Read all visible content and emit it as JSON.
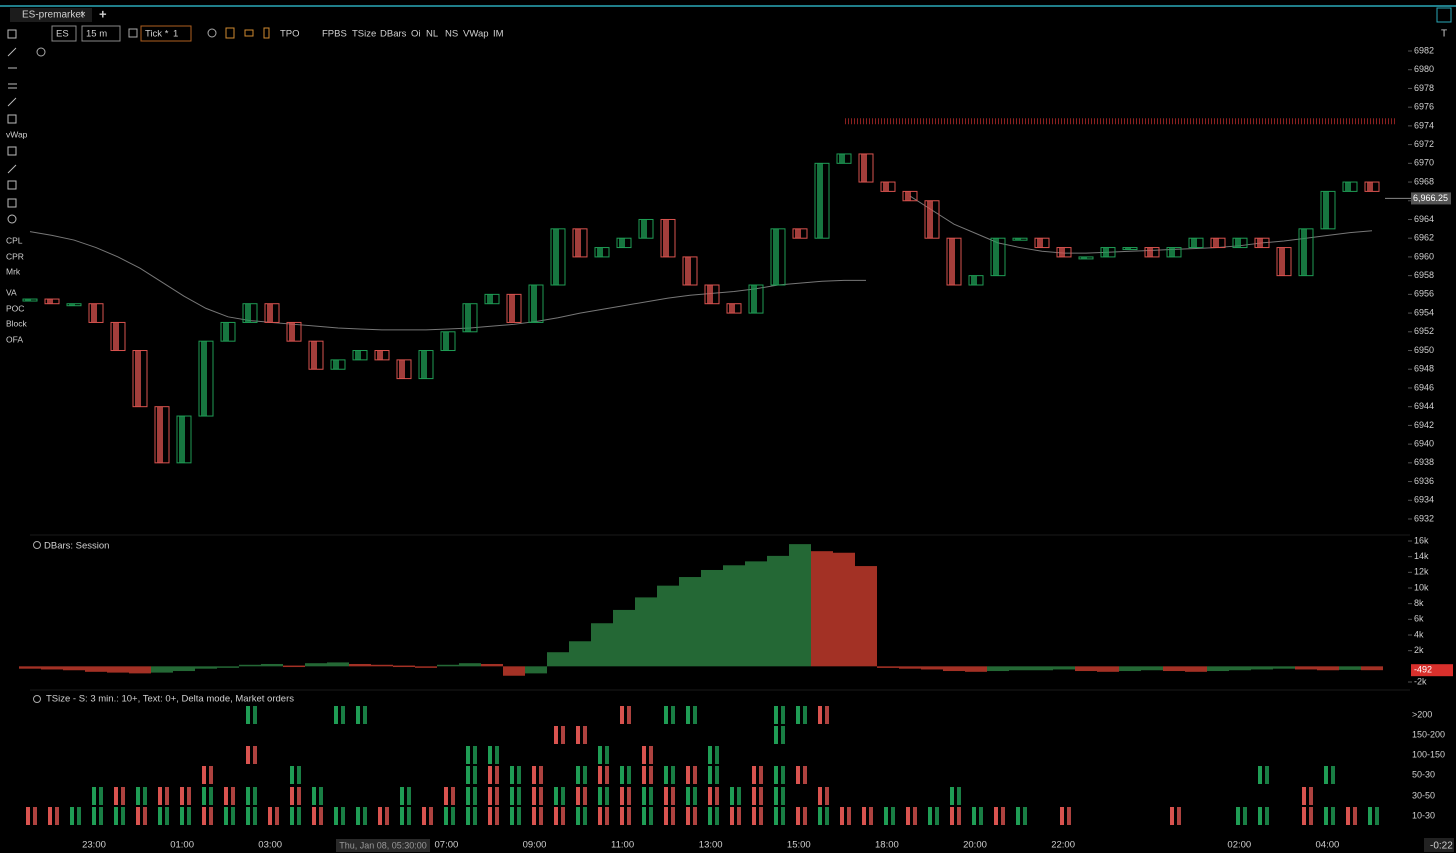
{
  "tab": {
    "title": "ES-premarket",
    "close": "×",
    "add": "+"
  },
  "toolbar": {
    "symbol": "ES",
    "interval": "15 m",
    "tick_label": "Tick *",
    "tick_value": "1",
    "items": [
      "TPO",
      "FPBS",
      "TSize",
      "DBars",
      "Oi",
      "NL",
      "NS",
      "VWap",
      "IM"
    ]
  },
  "corner": {
    "tool": "T",
    "timer": "-0:22"
  },
  "sidebar": [
    "vWap",
    "CPL",
    "CPR",
    "Mrk",
    "VA",
    "POC",
    "Block",
    "OFA"
  ],
  "time_axis": {
    "labels": [
      "23:00",
      "01:00",
      "03:00",
      null,
      "07:00",
      "09:00",
      "11:00",
      "13:00",
      "15:00",
      "18:00",
      "20:00",
      "22:00",
      null,
      "02:00",
      "04:00"
    ],
    "cursor": "Thu, Jan 08, 05:30:00"
  },
  "chart_data": [
    {
      "type": "candlestick",
      "up_color": "#1f9d55",
      "down_color": "#d9534f",
      "ylim": [
        6931,
        6983
      ],
      "yticks": [
        6982,
        6980,
        6978,
        6976,
        6974,
        6972,
        6970,
        6968,
        6966,
        6964,
        6962,
        6960,
        6958,
        6956,
        6954,
        6952,
        6950,
        6948,
        6946,
        6944,
        6942,
        6940,
        6938,
        6936,
        6934,
        6932
      ],
      "last": {
        "value": 6966.25,
        "label": "6,966.25"
      },
      "level": {
        "value": 6974.5,
        "color": "#8b2020"
      },
      "values": [
        6955.5,
        6955,
        6955,
        6953,
        6950,
        6944,
        6938,
        6943,
        6951,
        6953,
        6955,
        6953,
        6951,
        6948,
        6949,
        6950,
        6949,
        6947,
        6950,
        6952,
        6955,
        6956,
        6953,
        6957,
        6963,
        6960,
        6961,
        6962,
        6964,
        6960,
        6957,
        6955,
        6954,
        6957,
        6963,
        6962,
        6970,
        6971,
        6968,
        6967,
        6966,
        6962,
        6957,
        6958,
        6962,
        6962,
        6961,
        6960,
        6960,
        6961,
        6961,
        6960,
        6961,
        6962,
        6961,
        6962,
        6961,
        6958,
        6963,
        6967,
        6968,
        6967
      ],
      "vwap": [
        6962.7,
        6962.3,
        6961.8,
        6961.0,
        6960.0,
        6958.8,
        6957.3,
        6955.8,
        6954.5,
        6953.6,
        6953.2,
        6953.0,
        6952.8,
        6952.6,
        6952.4,
        6952.3,
        6952.2,
        6952.2,
        6952.2,
        6952.3,
        6952.4,
        6952.6,
        6952.8,
        6953.1,
        6953.5,
        6954.0,
        6954.4,
        6954.8,
        6955.2,
        6955.6,
        6955.9,
        6956.1,
        6956.3,
        6956.6,
        6957.0,
        6957.2,
        6957.4,
        6957.5,
        6957.5,
        null,
        6966.5,
        6965.0,
        6963.5,
        6962.5,
        6961.5,
        6961.0,
        6960.6,
        6960.4,
        6960.4,
        6960.5,
        6960.6,
        6960.7,
        6960.8,
        6960.9,
        6961.0,
        6961.2,
        6961.5,
        6961.7,
        6962.0,
        6962.3,
        6962.6,
        6962.8
      ]
    },
    {
      "type": "bar",
      "title": "DBars: Session",
      "up_color": "#2a7a3e",
      "down_color": "#c0392b",
      "ylim": [
        -2000,
        16000
      ],
      "yticks": [
        {
          "value": 16000,
          "label": "16k"
        },
        {
          "value": 14000,
          "label": "14k"
        },
        {
          "value": 12000,
          "label": "12k"
        },
        {
          "value": 10000,
          "label": "10k"
        },
        {
          "value": 8000,
          "label": "8k"
        },
        {
          "value": 6000,
          "label": "6k"
        },
        {
          "value": 4000,
          "label": "4k"
        },
        {
          "value": 2000,
          "label": "2k"
        },
        {
          "value": -2000,
          "label": "-2k"
        }
      ],
      "last": {
        "value": -492,
        "label": "-492"
      },
      "values": [
        -300,
        -400,
        -500,
        -700,
        -800,
        -900,
        -800,
        -600,
        -300,
        -100,
        200,
        300,
        100,
        400,
        500,
        300,
        200,
        100,
        -100,
        200,
        400,
        300,
        -1200,
        -900,
        1800,
        3200,
        5500,
        7200,
        8800,
        10300,
        11400,
        12300,
        12900,
        13400,
        14100,
        15600,
        14700,
        14500,
        12800,
        -200,
        -300,
        -400,
        -600,
        -700,
        -600,
        -500,
        -500,
        -400,
        -600,
        -700,
        -600,
        -500,
        -600,
        -700,
        -600,
        -500,
        -400,
        -300,
        -400,
        -500,
        -450,
        -492
      ]
    },
    {
      "type": "event-grid",
      "title": "TSize - S: 3 min.: 10+, Text: 0+, Delta mode,  Market orders",
      "buy_color": "#1f9d55",
      "sell_color": "#d9534f",
      "rows": [
        ">200",
        "150-200",
        "100-150",
        "50-30",
        "30-50",
        "10-30"
      ],
      "patterns": [
        "..........g...gg...........r.gg...ggr.........................",
        "........................rr........g...........................",
        "..........r.........gg....g.r..g..............................",
        "........r...g.......grgr.grgrgrg.rgr....................g..g..",
        "...grgrrgrg.rg...g.rgrgrgrgrgrgrgrg.r.....g...............r...",
        "rrgggrggrggrgrggrgrggrgrrgrrgrrgrrgrgrrgrgrgrg.r....r..gg.rgrg"
      ]
    }
  ]
}
